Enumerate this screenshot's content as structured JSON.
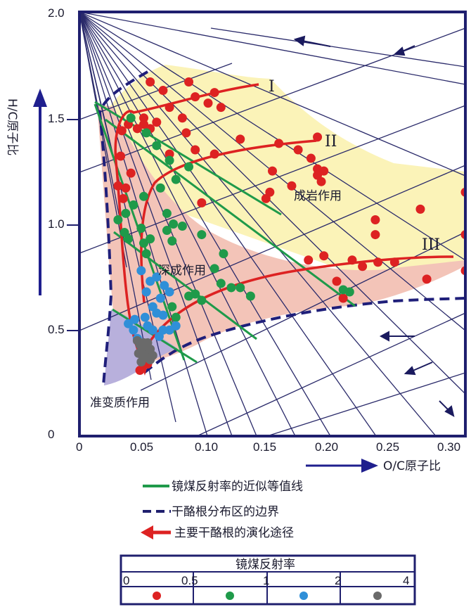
{
  "chart_data": {
    "type": "scatter",
    "xlabel": "O/C原子比",
    "ylabel": "H/C原子比",
    "xlim": [
      0,
      0.3
    ],
    "ylim": [
      0,
      2.0
    ],
    "x_ticks": [
      "0",
      "0.05",
      "0.10",
      "0.15",
      "0.20",
      "0.25",
      "0.30"
    ],
    "y_ticks": [
      "0",
      "0.5",
      "1.0",
      "1.5",
      "2.0"
    ],
    "regions": [
      {
        "label": "成岩作用",
        "color": "#fbf3b8"
      },
      {
        "label": "深成作用",
        "color": "#f3c4b8"
      },
      {
        "label": "准变质作用",
        "color": "#b8b0dc"
      }
    ],
    "path_labels": [
      "I",
      "II",
      "III"
    ],
    "series": [
      {
        "color": "#dd2222",
        "points": [
          [
            0.055,
            1.67
          ],
          [
            0.065,
            1.63
          ],
          [
            0.085,
            1.67
          ],
          [
            0.105,
            1.62
          ],
          [
            0.11,
            1.55
          ],
          [
            0.1,
            1.57
          ],
          [
            0.09,
            1.6
          ],
          [
            0.07,
            1.55
          ],
          [
            0.08,
            1.5
          ],
          [
            0.045,
            1.45
          ],
          [
            0.05,
            1.47
          ],
          [
            0.055,
            1.45
          ],
          [
            0.06,
            1.48
          ],
          [
            0.05,
            1.5
          ],
          [
            0.083,
            1.43
          ],
          [
            0.038,
            1.47
          ],
          [
            0.033,
            1.44
          ],
          [
            0.032,
            1.32
          ],
          [
            0.03,
            1.18
          ],
          [
            0.036,
            1.17
          ],
          [
            0.04,
            1.24
          ],
          [
            0.034,
            1.12
          ],
          [
            0.07,
            1.33
          ],
          [
            0.09,
            1.35
          ],
          [
            0.105,
            1.33
          ],
          [
            0.125,
            1.4
          ],
          [
            0.155,
            1.38
          ],
          [
            0.17,
            1.35
          ],
          [
            0.185,
            1.41
          ],
          [
            0.18,
            1.31
          ],
          [
            0.185,
            1.26
          ],
          [
            0.19,
            1.25
          ],
          [
            0.185,
            1.23
          ],
          [
            0.188,
            1.2
          ],
          [
            0.15,
            1.25
          ],
          [
            0.165,
            1.18
          ],
          [
            0.145,
            1.12
          ],
          [
            0.148,
            1.15
          ],
          [
            0.095,
            1.1
          ],
          [
            0.265,
            1.07
          ],
          [
            0.3,
            1.15
          ],
          [
            0.23,
            1.02
          ],
          [
            0.23,
            0.95
          ],
          [
            0.3,
            0.95
          ],
          [
            0.3,
            0.78
          ],
          [
            0.27,
            0.74
          ],
          [
            0.245,
            0.82
          ],
          [
            0.232,
            0.82
          ],
          [
            0.22,
            0.8
          ],
          [
            0.212,
            0.83
          ],
          [
            0.19,
            0.85
          ],
          [
            0.178,
            0.83
          ],
          [
            0.2,
            0.73
          ],
          [
            0.205,
            0.65
          ],
          [
            0.053,
            0.34
          ],
          [
            0.047,
            0.31
          ]
        ]
      },
      {
        "color": "#1f9a4a",
        "points": [
          [
            0.04,
            1.5
          ],
          [
            0.052,
            1.43
          ],
          [
            0.06,
            1.37
          ],
          [
            0.07,
            1.3
          ],
          [
            0.085,
            1.27
          ],
          [
            0.075,
            1.21
          ],
          [
            0.063,
            1.17
          ],
          [
            0.05,
            1.13
          ],
          [
            0.042,
            1.09
          ],
          [
            0.036,
            1.05
          ],
          [
            0.03,
            1.02
          ],
          [
            0.035,
            0.96
          ],
          [
            0.038,
            0.93
          ],
          [
            0.048,
            0.98
          ],
          [
            0.05,
            0.91
          ],
          [
            0.052,
            0.86
          ],
          [
            0.055,
            0.93
          ],
          [
            0.068,
            1.05
          ],
          [
            0.073,
            1.0
          ],
          [
            0.068,
            0.97
          ],
          [
            0.072,
            0.92
          ],
          [
            0.08,
            0.99
          ],
          [
            0.095,
            0.95
          ],
          [
            0.112,
            0.86
          ],
          [
            0.105,
            0.79
          ],
          [
            0.11,
            0.72
          ],
          [
            0.118,
            0.7
          ],
          [
            0.09,
            0.67
          ],
          [
            0.095,
            0.64
          ],
          [
            0.085,
            0.66
          ],
          [
            0.075,
            0.56
          ],
          [
            0.072,
            0.61
          ],
          [
            0.125,
            0.7
          ],
          [
            0.133,
            0.66
          ],
          [
            0.205,
            0.69
          ],
          [
            0.21,
            0.68
          ]
        ]
      },
      {
        "color": "#2f8fd8",
        "points": [
          [
            0.048,
            0.78
          ],
          [
            0.055,
            0.73
          ],
          [
            0.052,
            0.68
          ],
          [
            0.06,
            0.75
          ],
          [
            0.066,
            0.71
          ],
          [
            0.07,
            0.68
          ],
          [
            0.063,
            0.65
          ],
          [
            0.057,
            0.61
          ],
          [
            0.051,
            0.56
          ],
          [
            0.053,
            0.52
          ],
          [
            0.06,
            0.58
          ],
          [
            0.065,
            0.57
          ],
          [
            0.057,
            0.5
          ],
          [
            0.062,
            0.47
          ],
          [
            0.065,
            0.5
          ],
          [
            0.07,
            0.5
          ],
          [
            0.075,
            0.52
          ],
          [
            0.048,
            0.44
          ],
          [
            0.045,
            0.46
          ],
          [
            0.042,
            0.5
          ],
          [
            0.038,
            0.53
          ],
          [
            0.043,
            0.55
          ]
        ]
      },
      {
        "color": "#6a6a6a",
        "points": [
          [
            0.045,
            0.45
          ],
          [
            0.047,
            0.43
          ],
          [
            0.049,
            0.41
          ],
          [
            0.051,
            0.42
          ],
          [
            0.053,
            0.4
          ],
          [
            0.055,
            0.41
          ],
          [
            0.049,
            0.38
          ],
          [
            0.052,
            0.37
          ],
          [
            0.055,
            0.36
          ],
          [
            0.057,
            0.38
          ],
          [
            0.046,
            0.39
          ],
          [
            0.05,
            0.44
          ],
          [
            0.048,
            0.35
          ],
          [
            0.053,
            0.44
          ]
        ]
      }
    ]
  },
  "legend": {
    "green_line": "镜煤反射率的近似等值线",
    "dashed_boundary": "干酪根分布区的边界",
    "red_arrow": "主要干酪根的演化途径"
  },
  "vr_table": {
    "title": "镜煤反射率",
    "breaks": [
      "0",
      "0.5",
      "1",
      "2",
      "4"
    ],
    "colors": [
      "#dd2222",
      "#1f9a4a",
      "#2f8fd8",
      "#6a6a6a"
    ]
  }
}
